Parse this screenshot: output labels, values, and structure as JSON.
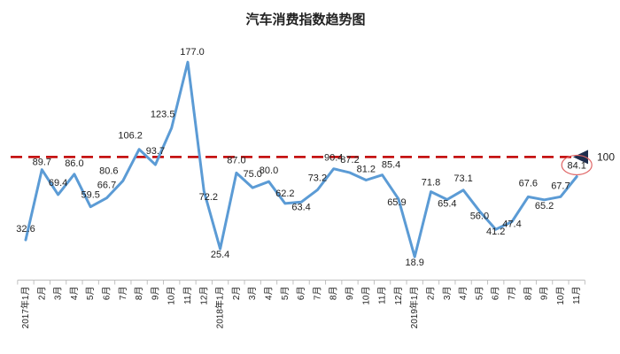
{
  "chart_data": {
    "type": "line",
    "title": "汽车消费指数趋势图",
    "x": [
      "2017年1月",
      "2月",
      "3月",
      "4月",
      "5月",
      "6月",
      "7月",
      "8月",
      "9月",
      "10月",
      "11月",
      "12月",
      "2018年1月",
      "2月",
      "3月",
      "4月",
      "5月",
      "6月",
      "7月",
      "8月",
      "9月",
      "10月",
      "11月",
      "12月",
      "2019年1月",
      "2月",
      "3月",
      "4月",
      "5月",
      "6月",
      "7月",
      "8月",
      "9月",
      "10月",
      "11月"
    ],
    "values": [
      32.6,
      89.7,
      69.4,
      86.0,
      59.5,
      66.7,
      80.6,
      106.2,
      93.7,
      123.5,
      177.0,
      72.2,
      25.4,
      87.0,
      75.0,
      80.0,
      62.2,
      63.4,
      73.2,
      90.4,
      87.2,
      81.2,
      85.4,
      65.9,
      18.9,
      71.8,
      65.4,
      73.1,
      56.0,
      41.2,
      47.4,
      67.6,
      65.2,
      67.7,
      84.1
    ],
    "labels": [
      "32.6",
      "89.7",
      "69.4",
      "86.0",
      "59.5",
      "66.7",
      "80.6",
      "106.2",
      "93.7",
      "123.5",
      "177.0",
      "72.2",
      "25.4",
      "87.0",
      "75.0",
      "80.0",
      "62.2",
      "63.4",
      "73.2",
      "90.4",
      "87.2",
      "81.2",
      "85.4",
      "65.9",
      "18.9",
      "71.8",
      "65.4",
      "73.1",
      "56.0",
      "41.2",
      "47.4",
      "67.6",
      "65.2",
      "67.7",
      "84.1"
    ],
    "reference_line": {
      "value": 100,
      "label": "100",
      "style": "dashed",
      "color": "#c00000"
    },
    "highlighted_point": "84.1",
    "line_color": "#5b9bd5",
    "ylim": [
      0,
      180
    ],
    "grid": false,
    "legend": "none"
  }
}
